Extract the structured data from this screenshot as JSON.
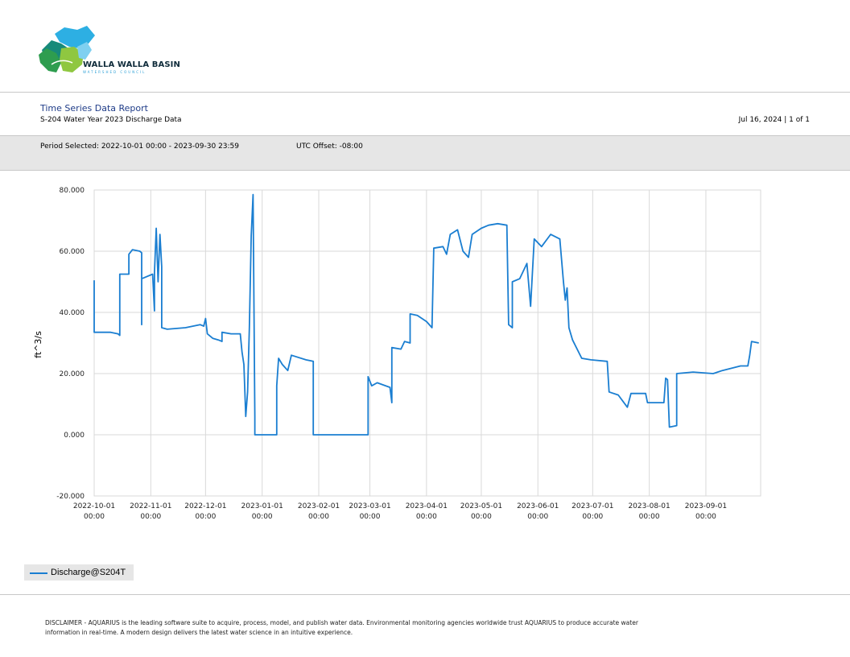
{
  "header": {
    "logo_title": "WALLA WALLA BASIN",
    "logo_subtitle": "WATERSHED COUNCIL"
  },
  "report": {
    "title": "Time Series Data Report",
    "subtitle": "S-204 Water Year 2023 Discharge Data",
    "date_page": "Jul 16, 2024 | 1 of 1",
    "period": "Period Selected: 2022-10-01 00:00 - 2023-09-30 23:59",
    "utc_offset": "UTC Offset: -08:00"
  },
  "chart_data": {
    "type": "line",
    "ylabel": "ft^3/s",
    "xlabel": "",
    "ylim": [
      -20,
      80
    ],
    "xlim": [
      "2022-10-01",
      "2023-09-30"
    ],
    "yticks": [
      "80.000",
      "60.000",
      "40.000",
      "20.000",
      "0.000",
      "-20.000"
    ],
    "ytick_values": [
      80,
      60,
      40,
      20,
      0,
      -20
    ],
    "xticks": [
      {
        "date": "2022-10-01",
        "line1": "2022-10-01",
        "line2": "00:00"
      },
      {
        "date": "2022-11-01",
        "line1": "2022-11-01",
        "line2": "00:00"
      },
      {
        "date": "2022-12-01",
        "line1": "2022-12-01",
        "line2": "00:00"
      },
      {
        "date": "2023-01-01",
        "line1": "2023-01-01",
        "line2": "00:00"
      },
      {
        "date": "2023-02-01",
        "line1": "2023-02-01",
        "line2": "00:00"
      },
      {
        "date": "2023-03-01",
        "line1": "2023-03-01",
        "line2": "00:00"
      },
      {
        "date": "2023-04-01",
        "line1": "2023-04-01",
        "line2": "00:00"
      },
      {
        "date": "2023-05-01",
        "line1": "2023-05-01",
        "line2": "00:00"
      },
      {
        "date": "2023-06-01",
        "line1": "2023-06-01",
        "line2": "00:00"
      },
      {
        "date": "2023-07-01",
        "line1": "2023-07-01",
        "line2": "00:00"
      },
      {
        "date": "2023-08-01",
        "line1": "2023-08-01",
        "line2": "00:00"
      },
      {
        "date": "2023-09-01",
        "line1": "2023-09-01",
        "line2": "00:00"
      }
    ],
    "grid": true,
    "legend_position": "bottom-left",
    "series": [
      {
        "name": "Discharge@S204T",
        "color": "#1a7ed1",
        "points": [
          [
            "2022-10-01",
            50.5
          ],
          [
            "2022-10-01",
            33.5
          ],
          [
            "2022-10-10",
            33.5
          ],
          [
            "2022-10-14",
            33.0
          ],
          [
            "2022-10-15",
            32.5
          ],
          [
            "2022-10-15",
            52.5
          ],
          [
            "2022-10-20",
            52.5
          ],
          [
            "2022-10-20",
            59.0
          ],
          [
            "2022-10-22",
            60.5
          ],
          [
            "2022-10-26",
            60.0
          ],
          [
            "2022-10-27",
            59.5
          ],
          [
            "2022-10-27",
            36.0
          ],
          [
            "2022-10-27",
            51.0
          ],
          [
            "2022-11-02",
            52.5
          ],
          [
            "2022-11-03",
            40.5
          ],
          [
            "2022-11-03",
            53.0
          ],
          [
            "2022-11-04",
            67.5
          ],
          [
            "2022-11-05",
            50.0
          ],
          [
            "2022-11-06",
            65.5
          ],
          [
            "2022-11-07",
            55.0
          ],
          [
            "2022-11-07",
            35.0
          ],
          [
            "2022-11-10",
            34.5
          ],
          [
            "2022-11-20",
            35.0
          ],
          [
            "2022-11-28",
            36.0
          ],
          [
            "2022-11-30",
            35.5
          ],
          [
            "2022-12-01",
            38.0
          ],
          [
            "2022-12-02",
            33.0
          ],
          [
            "2022-12-05",
            31.5
          ],
          [
            "2022-12-08",
            31.0
          ],
          [
            "2022-12-10",
            30.5
          ],
          [
            "2022-12-10",
            33.5
          ],
          [
            "2022-12-15",
            33.0
          ],
          [
            "2022-12-20",
            33.0
          ],
          [
            "2022-12-21",
            27.0
          ],
          [
            "2022-12-22",
            23.0
          ],
          [
            "2022-12-23",
            6.0
          ],
          [
            "2022-12-24",
            14.0
          ],
          [
            "2022-12-25",
            35.0
          ],
          [
            "2022-12-26",
            65.0
          ],
          [
            "2022-12-27",
            78.5
          ],
          [
            "2022-12-28",
            6.0
          ],
          [
            "2022-12-28",
            0.0
          ],
          [
            "2023-01-09",
            0.0
          ],
          [
            "2023-01-09",
            16.0
          ],
          [
            "2023-01-10",
            25.0
          ],
          [
            "2023-01-12",
            23.0
          ],
          [
            "2023-01-15",
            21.0
          ],
          [
            "2023-01-17",
            26.0
          ],
          [
            "2023-01-25",
            24.5
          ],
          [
            "2023-01-29",
            24.0
          ],
          [
            "2023-01-29",
            0.0
          ],
          [
            "2023-02-28",
            0.0
          ],
          [
            "2023-02-28",
            19.0
          ],
          [
            "2023-03-02",
            16.0
          ],
          [
            "2023-03-05",
            17.0
          ],
          [
            "2023-03-12",
            15.5
          ],
          [
            "2023-03-13",
            10.5
          ],
          [
            "2023-03-13",
            28.5
          ],
          [
            "2023-03-18",
            28.0
          ],
          [
            "2023-03-20",
            30.5
          ],
          [
            "2023-03-23",
            30.0
          ],
          [
            "2023-03-23",
            39.5
          ],
          [
            "2023-03-27",
            39.0
          ],
          [
            "2023-04-01",
            37.0
          ],
          [
            "2023-04-04",
            35.0
          ],
          [
            "2023-04-05",
            61.0
          ],
          [
            "2023-04-10",
            61.5
          ],
          [
            "2023-04-12",
            59.0
          ],
          [
            "2023-04-14",
            65.5
          ],
          [
            "2023-04-18",
            67.0
          ],
          [
            "2023-04-21",
            60.0
          ],
          [
            "2023-04-24",
            58.0
          ],
          [
            "2023-04-26",
            65.5
          ],
          [
            "2023-05-01",
            67.5
          ],
          [
            "2023-05-05",
            68.5
          ],
          [
            "2023-05-10",
            69.0
          ],
          [
            "2023-05-15",
            68.5
          ],
          [
            "2023-05-16",
            36.0
          ],
          [
            "2023-05-18",
            35.0
          ],
          [
            "2023-05-18",
            50.0
          ],
          [
            "2023-05-22",
            51.0
          ],
          [
            "2023-05-26",
            56.0
          ],
          [
            "2023-05-28",
            42.0
          ],
          [
            "2023-05-30",
            64.0
          ],
          [
            "2023-06-03",
            61.5
          ],
          [
            "2023-06-08",
            65.5
          ],
          [
            "2023-06-13",
            64.0
          ],
          [
            "2023-06-15",
            50.0
          ],
          [
            "2023-06-16",
            44.0
          ],
          [
            "2023-06-17",
            48.0
          ],
          [
            "2023-06-18",
            35.0
          ],
          [
            "2023-06-20",
            31.0
          ],
          [
            "2023-06-25",
            25.0
          ],
          [
            "2023-06-30",
            24.5
          ],
          [
            "2023-07-09",
            24.0
          ],
          [
            "2023-07-10",
            14.0
          ],
          [
            "2023-07-15",
            13.0
          ],
          [
            "2023-07-20",
            9.0
          ],
          [
            "2023-07-22",
            13.5
          ],
          [
            "2023-07-30",
            13.5
          ],
          [
            "2023-07-31",
            10.5
          ],
          [
            "2023-08-09",
            10.5
          ],
          [
            "2023-08-10",
            18.5
          ],
          [
            "2023-08-11",
            18.0
          ],
          [
            "2023-08-12",
            2.5
          ],
          [
            "2023-08-16",
            3.0
          ],
          [
            "2023-08-16",
            20.0
          ],
          [
            "2023-08-25",
            20.5
          ],
          [
            "2023-09-05",
            20.0
          ],
          [
            "2023-09-10",
            21.0
          ],
          [
            "2023-09-20",
            22.5
          ],
          [
            "2023-09-24",
            22.5
          ],
          [
            "2023-09-25",
            26.0
          ],
          [
            "2023-09-26",
            30.5
          ],
          [
            "2023-09-30",
            30.0
          ]
        ]
      }
    ]
  },
  "legend": {
    "label": "Discharge@S204T"
  },
  "footer": {
    "disclaimer": "DISCLAIMER - AQUARIUS is the leading software suite to acquire, process, model, and publish water data. Environmental monitoring agencies worldwide trust AQUARIUS to produce accurate water information in real-time. A modern design delivers the latest water science in an intuitive experience."
  }
}
